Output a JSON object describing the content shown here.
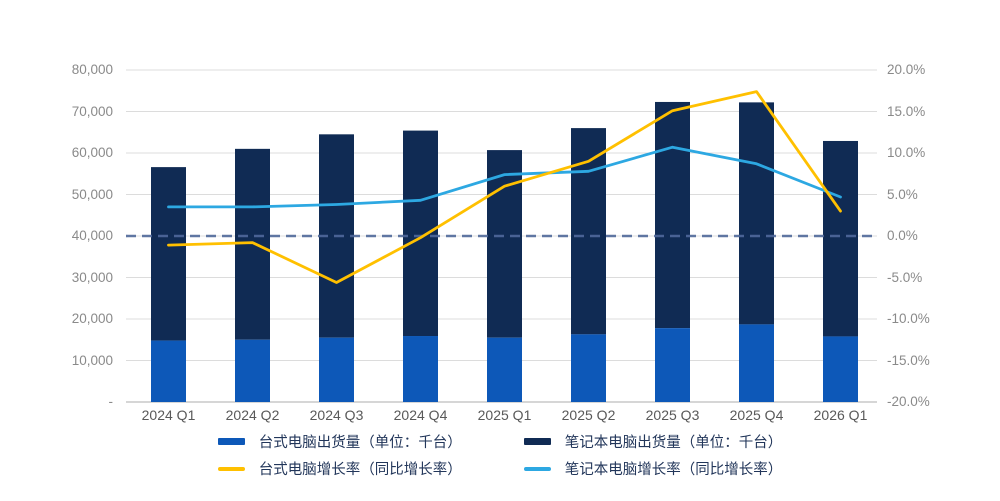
{
  "chart_data": {
    "type": "bar",
    "subtype": "stacked-bar-with-lines-combo",
    "title": "",
    "categories": [
      "2024 Q1",
      "2024 Q2",
      "2024 Q3",
      "2024 Q4",
      "2025 Q1",
      "2025 Q2",
      "2025 Q3",
      "2025 Q4",
      "2026 Q1"
    ],
    "series": [
      {
        "name": "台式电脑出货量（单位：千台）",
        "type": "bar",
        "stack": "shipments",
        "axis": "left",
        "color": "#0d58b8",
        "values": [
          14800,
          15000,
          15500,
          15900,
          15500,
          16300,
          17800,
          18700,
          15800
        ]
      },
      {
        "name": "笔记本电脑出货量（单位：千台）",
        "type": "bar",
        "stack": "shipments",
        "axis": "left",
        "color": "#102b54",
        "values": [
          41800,
          46000,
          49000,
          49500,
          45200,
          49700,
          54500,
          53500,
          47100
        ]
      },
      {
        "name": "台式电脑增长率（同比增长率）",
        "type": "line",
        "axis": "right",
        "color": "#ffc000",
        "values_pct": [
          -1.1,
          -0.8,
          -5.6,
          -0.2,
          6.0,
          9.0,
          15.1,
          17.4,
          3.0
        ]
      },
      {
        "name": "笔记本电脑增长率（同比增长率）",
        "type": "line",
        "axis": "right",
        "color": "#2da8e2",
        "values_pct": [
          3.5,
          3.5,
          3.8,
          4.3,
          7.4,
          7.8,
          10.7,
          8.7,
          4.7
        ]
      }
    ],
    "stack_totals": [
      56600,
      61000,
      64500,
      65400,
      60700,
      66000,
      72300,
      72200,
      62900
    ],
    "left_axis": {
      "min": 0,
      "max": 80000,
      "step": 10000,
      "tick_labels": [
        "-",
        "10,000",
        "20,000",
        "30,000",
        "40,000",
        "50,000",
        "60,000",
        "70,000",
        "80,000"
      ]
    },
    "right_axis": {
      "min": -20,
      "max": 20,
      "step": 5,
      "tick_labels": [
        "-20.0%",
        "-15.0%",
        "-10.0%",
        "-5.0%",
        "0.0%",
        "5.0%",
        "10.0%",
        "15.0%",
        "20.0%"
      ]
    },
    "zero_line": {
      "at_pct": 0,
      "style": "dashed",
      "color": "#50699b"
    },
    "grid": true,
    "grid_color": "#dcdcdc",
    "axis_line_color": "#c9c9c9",
    "legend_position": "bottom",
    "xlabel": "",
    "ylabel": ""
  },
  "legend": {
    "items": [
      {
        "label": "台式电脑出货量（单位：千台）",
        "swatch": "bar",
        "color": "#0d58b8"
      },
      {
        "label": "笔记本电脑出货量（单位：千台）",
        "swatch": "bar",
        "color": "#102b54"
      },
      {
        "label": "台式电脑增长率（同比增长率）",
        "swatch": "line",
        "color": "#ffc000"
      },
      {
        "label": "笔记本电脑增长率（同比增长率）",
        "swatch": "line",
        "color": "#2da8e2"
      }
    ]
  },
  "colors": {
    "desktop_bar": "#0d58b8",
    "laptop_bar": "#102b54",
    "desktop_line": "#ffc000",
    "laptop_line": "#2da8e2",
    "zero_dash": "#50699b",
    "grid": "#dcdcdc",
    "tick_text": "#8a8a8a",
    "x_text": "#595959",
    "legend_text": "#22365a"
  }
}
